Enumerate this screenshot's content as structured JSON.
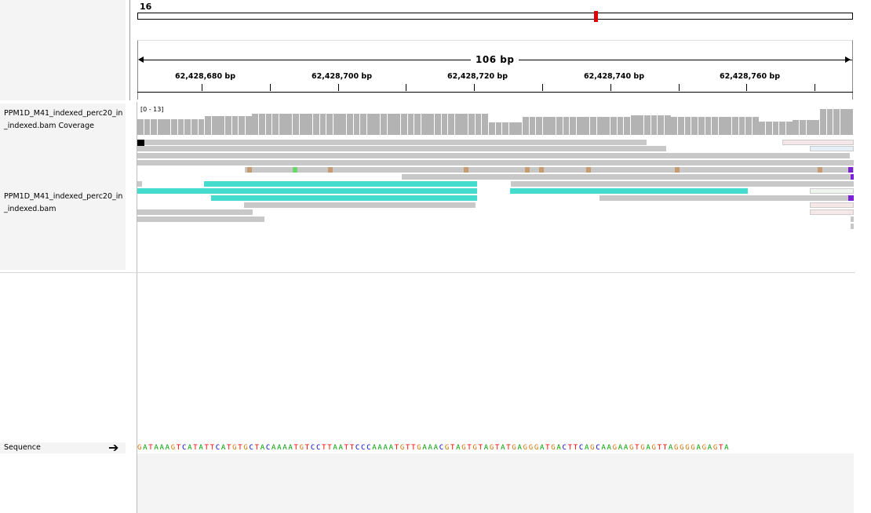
{
  "locus": {
    "chromosome": "16",
    "span_label": "106 bp"
  },
  "ruler": {
    "ticks": [
      {
        "label": "62,428,680 bp"
      },
      {
        "label": "62,428,700 bp"
      },
      {
        "label": "62,428,720 bp"
      },
      {
        "label": "62,428,740 bp"
      },
      {
        "label": "62,428,760 bp"
      }
    ]
  },
  "tracks": {
    "coverage": {
      "name_line1": "PPM1D_M41_indexed_perc20_in",
      "name_line2": "_indexed.bam Coverage",
      "range": "[0 - 13]"
    },
    "alignment": {
      "name_line1": "PPM1D_M41_indexed_perc20_in",
      "name_line2": "_indexed.bam"
    },
    "sequence": {
      "name": "Sequence",
      "bases": "GATAAAGTCATATTCATGTGCTACAAAATGTCCTTAATTCCCAAAATGTTGAAACGTAGTGTAGTATGAGGGATGACTTCAGCAAGAAGTGAGTTAGGGGAGAGTA"
    }
  },
  "colors": {
    "A": "#00a000",
    "C": "#0000c8",
    "G": "#d17105",
    "T": "#ff0000",
    "coverage": "#b3b3b3",
    "read": "#c8c8c8",
    "soft_read": "#44dccf"
  },
  "icons": {
    "strand": "arrow-right-icon"
  }
}
